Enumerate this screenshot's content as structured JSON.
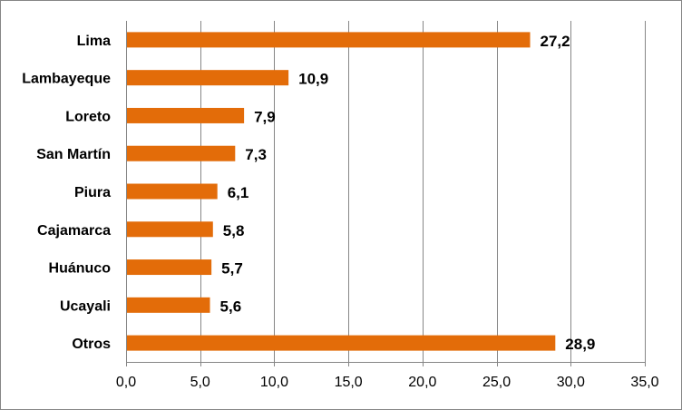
{
  "chart_data": {
    "type": "bar",
    "orientation": "horizontal",
    "categories": [
      "Lima",
      "Lambayeque",
      "Loreto",
      "San Martín",
      "Piura",
      "Cajamarca",
      "Huánuco",
      "Ucayali",
      "Otros"
    ],
    "values": [
      27.2,
      10.9,
      7.9,
      7.3,
      6.1,
      5.8,
      5.7,
      5.6,
      28.9
    ],
    "value_labels": [
      "27,2",
      "10,9",
      "7,9",
      "7,3",
      "6,1",
      "5,8",
      "5,7",
      "5,6",
      "28,9"
    ],
    "xlim": [
      0,
      35
    ],
    "x_ticks": [
      0,
      5,
      10,
      15,
      20,
      25,
      30,
      35
    ],
    "x_tick_labels": [
      "0,0",
      "5,0",
      "10,0",
      "15,0",
      "20,0",
      "25,0",
      "30,0",
      "35,0"
    ],
    "bar_color": "#E36C09",
    "gridlines": "vertical",
    "grid_color": "#868686",
    "legend": "none"
  }
}
